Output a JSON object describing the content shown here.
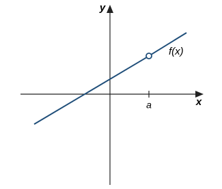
{
  "axes": {
    "y_label": "y",
    "x_label": "x"
  },
  "point": {
    "label": "a"
  },
  "curve": {
    "label": "f(x)"
  }
}
